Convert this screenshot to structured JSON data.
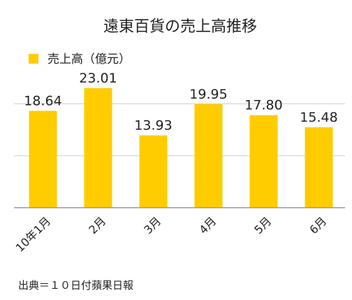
{
  "chart_data": {
    "type": "bar",
    "title": "遠東百貨の売上高推移",
    "categories": [
      "10年1月",
      "2月",
      "3月",
      "4月",
      "5月",
      "6月"
    ],
    "series": [
      {
        "name": "売上高（億元）",
        "values": [
          18.64,
          23.01,
          13.93,
          19.95,
          17.8,
          15.48
        ],
        "color": "#FFCC00"
      }
    ],
    "value_labels": [
      "18.64",
      "23.01",
      "13.93",
      "19.95",
      "17.80",
      "15.48"
    ],
    "ylim": [
      0,
      25
    ],
    "gridlines": [
      10,
      20
    ],
    "grid": true,
    "legend_position": "top-left",
    "xlabel": "",
    "ylabel": "",
    "tick_label_rotation": "-45deg"
  },
  "source": "出典＝１０日付蘋果日報",
  "colors": {
    "bar": "#FFCC00",
    "grid": "#d0d0d0",
    "baseline": "#999999",
    "text": "#222222"
  }
}
